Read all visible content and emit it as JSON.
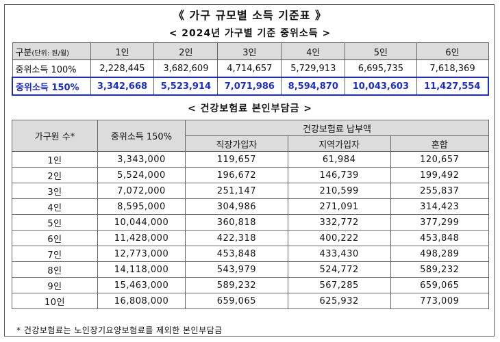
{
  "title": "《 가구 규모별 소득 기준표 》",
  "median_section": {
    "subtitle": "< 2024년 가구별 기준 중위소득 >",
    "header_label": "구분",
    "header_unit": "(단위: 원/월)",
    "columns": [
      "1인",
      "2인",
      "3인",
      "4인",
      "5인",
      "6인"
    ],
    "row100_label": "중위소득 100%",
    "row100": [
      "2,228,445",
      "3,682,609",
      "4,714,657",
      "5,729,913",
      "6,695,735",
      "7,618,369"
    ],
    "row150_label": "중위소득 150%",
    "row150": [
      "3,342,668",
      "5,523,914",
      "7,071,986",
      "8,594,870",
      "10,043,603",
      "11,427,554"
    ],
    "highlight_color": "#1a2bd1"
  },
  "insurance_section": {
    "subtitle": "< 건강보험료 본인부담금 >",
    "col_household": "가구원 수*",
    "col_median": "중위소득 150%",
    "col_group": "건강보험료 납부액",
    "col_employee": "직장가입자",
    "col_regional": "지역가입자",
    "col_mixed": "혼합",
    "rows": [
      {
        "size": "1인",
        "median": "3,343,000",
        "employee": "119,657",
        "regional": "61,984",
        "mixed": "120,657"
      },
      {
        "size": "2인",
        "median": "5,524,000",
        "employee": "196,672",
        "regional": "146,739",
        "mixed": "199,492"
      },
      {
        "size": "3인",
        "median": "7,072,000",
        "employee": "251,147",
        "regional": "210,599",
        "mixed": "255,837"
      },
      {
        "size": "4인",
        "median": "8,595,000",
        "employee": "304,986",
        "regional": "271,091",
        "mixed": "314,423"
      },
      {
        "size": "5인",
        "median": "10,044,000",
        "employee": "360,818",
        "regional": "332,772",
        "mixed": "377,299"
      },
      {
        "size": "6인",
        "median": "11,428,000",
        "employee": "422,318",
        "regional": "400,222",
        "mixed": "453,848"
      },
      {
        "size": "7인",
        "median": "12,773,000",
        "employee": "453,848",
        "regional": "433,430",
        "mixed": "498,289"
      },
      {
        "size": "8인",
        "median": "14,118,000",
        "employee": "543,979",
        "regional": "524,772",
        "mixed": "589,232"
      },
      {
        "size": "9인",
        "median": "15,463,000",
        "employee": "589,232",
        "regional": "567,285",
        "mixed": "659,065"
      },
      {
        "size": "10인",
        "median": "16,808,000",
        "employee": "659,065",
        "regional": "625,932",
        "mixed": "773,009"
      }
    ]
  },
  "footnote": "* 건강보험료는 노인장기요양보험료를 제외한 본인부담금"
}
